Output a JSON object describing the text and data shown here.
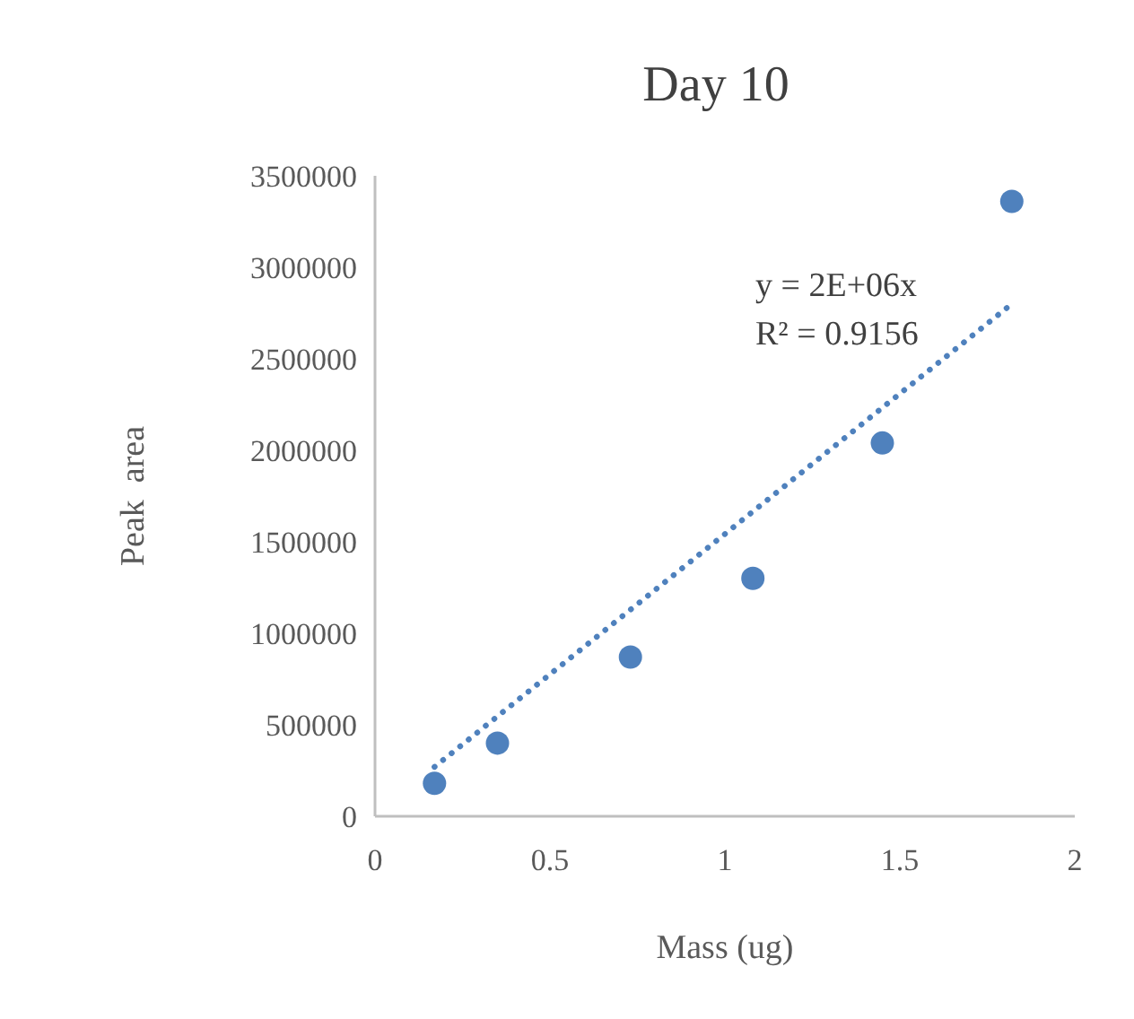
{
  "chart_data": {
    "type": "scatter",
    "title": "Day 10",
    "xlabel": "Mass (ug)",
    "ylabel": "Peak  area",
    "xlim": [
      0,
      2
    ],
    "xticks": [
      0,
      0.5,
      1,
      1.5,
      2
    ],
    "ylim": [
      0,
      3500000
    ],
    "yticks": [
      0,
      500000,
      1000000,
      1500000,
      2000000,
      2500000,
      3000000,
      3500000
    ],
    "grid": false,
    "marker": "circle",
    "series": [
      {
        "color": "#4f81bd",
        "x": [
          0.17,
          0.35,
          0.73,
          1.08,
          1.45,
          1.82
        ],
        "values": [
          180000,
          400000,
          870000,
          1300000,
          2040000,
          3360000
        ]
      },
      {
        "type": "line",
        "color": "#4f81bd",
        "line_style": "dotted",
        "marker": "none",
        "x": [
          0.17,
          1.82
        ],
        "values": [
          270000,
          2800000
        ]
      }
    ],
    "annotations": [
      "y = 2E+06x",
      "R² = 0.9156"
    ]
  }
}
